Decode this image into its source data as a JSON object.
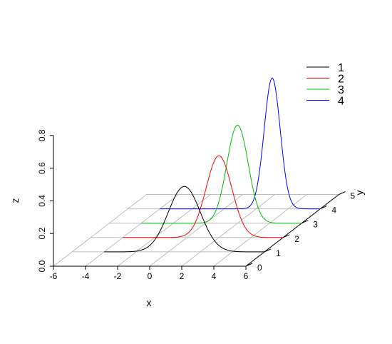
{
  "chart_data": {
    "type": "line",
    "subtype": "3d-scatterplot-lines",
    "xlabel": "x",
    "ylabel": "y",
    "zlabel": "z",
    "xlim": [
      -6,
      6
    ],
    "ylim": [
      0,
      5
    ],
    "zlim": [
      0,
      0.8
    ],
    "x_ticks": [
      "-6",
      "-4",
      "-2",
      "0",
      "2",
      "4",
      "6"
    ],
    "y_ticks": [
      "0",
      "1",
      "2",
      "3",
      "4",
      "5"
    ],
    "z_ticks": [
      "0.0",
      "0.2",
      "0.4",
      "0.6",
      "0.8"
    ],
    "grid": true,
    "legend": "top-right",
    "series": [
      {
        "name": "1",
        "color": "#000000",
        "y": 1,
        "x_range": [
          -4,
          6
        ],
        "peak_x": 1,
        "peak_z": 0.4,
        "sd": 1.0
      },
      {
        "name": "2",
        "color": "#ff0000",
        "y": 2,
        "x_range": [
          -4,
          6
        ],
        "peak_x": 2,
        "peak_z": 0.5,
        "sd": 0.8
      },
      {
        "name": "3",
        "color": "#00c000",
        "y": 3,
        "x_range": [
          -4,
          6
        ],
        "peak_x": 2,
        "peak_z": 0.6,
        "sd": 0.667
      },
      {
        "name": "4",
        "color": "#0000ff",
        "y": 4,
        "x_range": [
          -4,
          6
        ],
        "peak_x": 3,
        "peak_z": 0.8,
        "sd": 0.5
      }
    ]
  }
}
